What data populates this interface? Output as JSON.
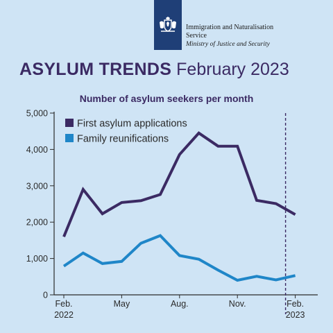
{
  "header": {
    "org_name_line1": "Immigration and Naturalisation",
    "org_name_line2": "Service",
    "ministry": "Ministry of Justice and Security"
  },
  "title": {
    "strong": "ASYLUM TRENDS",
    "light": "February 2023"
  },
  "chart_data": {
    "type": "line",
    "title": "Number of asylum seekers per month",
    "x": [
      "Feb. 2022",
      "Mar. 2022",
      "Apr. 2022",
      "May 2022",
      "Jun. 2022",
      "Jul. 2022",
      "Aug. 2022",
      "Sep. 2022",
      "Oct. 2022",
      "Nov. 2022",
      "Dec. 2022",
      "Jan. 2023",
      "Feb. 2023"
    ],
    "x_ticks": [
      {
        "index": 0,
        "line1": "Feb.",
        "line2": "2022"
      },
      {
        "index": 3,
        "line1": "May",
        "line2": ""
      },
      {
        "index": 6,
        "line1": "Aug.",
        "line2": ""
      },
      {
        "index": 9,
        "line1": "Nov.",
        "line2": ""
      },
      {
        "index": 12,
        "line1": "Feb.",
        "line2": "2023"
      }
    ],
    "y_ticks": [
      "0",
      "1,000",
      "2,000",
      "3,000",
      "4,000",
      "5,000"
    ],
    "ylim": [
      0,
      5000
    ],
    "series": [
      {
        "name": "First asylum applications",
        "color": "#3b2a63",
        "values": [
          1600,
          2900,
          2230,
          2540,
          2590,
          2760,
          3860,
          4450,
          4090,
          4090,
          2600,
          2510,
          2210
        ]
      },
      {
        "name": "Family reunifications",
        "color": "#1f86c8",
        "values": [
          790,
          1150,
          860,
          920,
          1420,
          1630,
          1080,
          980,
          680,
          400,
          510,
          410,
          530
        ]
      }
    ],
    "marker_line": {
      "index": 12,
      "style": "dashed",
      "color": "#3b2a63"
    },
    "legend_position": "top-left",
    "grid": false
  }
}
